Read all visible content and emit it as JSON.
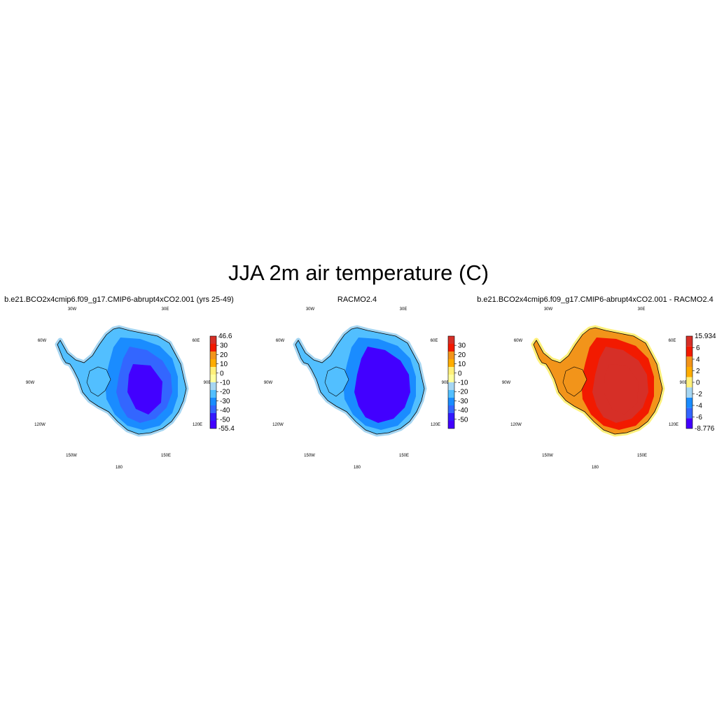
{
  "figure": {
    "title": "JJA 2m air temperature (C)"
  },
  "lon_labels": {
    "30W": "30W",
    "30E": "30E",
    "60W": "60W",
    "60E": "60E",
    "90W": "90W",
    "90E": "90E",
    "120W": "120W",
    "120E": "120E",
    "150W": "150W",
    "150E": "150E",
    "180": "180"
  },
  "panels": [
    {
      "title": "b.e21.BCO2x4cmip6.f09_g17.CMIP6-abrupt4xCO2.001 (yrs 25-49)",
      "colorbar": {
        "max_label": "46.6",
        "min_label": "-55.4",
        "ticks": [
          "30",
          "20",
          "10",
          "0",
          "-10",
          "-20",
          "-30",
          "-40",
          "-50"
        ],
        "colors": [
          "#d62f27",
          "#f21a00",
          "#f2941a",
          "#ffad00",
          "#fff07a",
          "#ffff9e",
          "#a6d6f2",
          "#52bfff",
          "#1a8cff",
          "#3366ff",
          "#3319ff",
          "#4200ff"
        ]
      }
    },
    {
      "title": "RACMO2.4",
      "colorbar": {
        "max_label": "",
        "min_label": "",
        "ticks": [
          "30",
          "20",
          "10",
          "0",
          "-10",
          "-20",
          "-30",
          "-40",
          "-50"
        ],
        "colors": [
          "#d62f27",
          "#f21a00",
          "#f2941a",
          "#ffad00",
          "#fff07a",
          "#ffff9e",
          "#a6d6f2",
          "#52bfff",
          "#1a8cff",
          "#3366ff",
          "#3319ff",
          "#4200ff"
        ]
      }
    },
    {
      "title": "b.e21.BCO2x4cmip6.f09_g17.CMIP6-abrupt4xCO2.001 - RACMO2.4",
      "colorbar": {
        "max_label": "15.934",
        "min_label": "-8.776",
        "ticks": [
          "6",
          "4",
          "2",
          "0",
          "-2",
          "-4",
          "-6"
        ],
        "colors": [
          "#d62f27",
          "#f21a00",
          "#f2941a",
          "#ffad00",
          "#fff07a",
          "#a6d6f2",
          "#1a8cff",
          "#3366ff",
          "#4200ff"
        ]
      }
    }
  ],
  "colors": {
    "ice_interior": "#4200ff",
    "ice_mid": "#3366ff",
    "ice_slope": "#1a8cff",
    "ice_coast": "#52bfff",
    "ice_edge": "#a6d6f2",
    "warm_interior": "#d62f27",
    "warm_mid": "#f21a00",
    "warm_coast": "#f2941a",
    "warm_edge": "#fff07a"
  }
}
